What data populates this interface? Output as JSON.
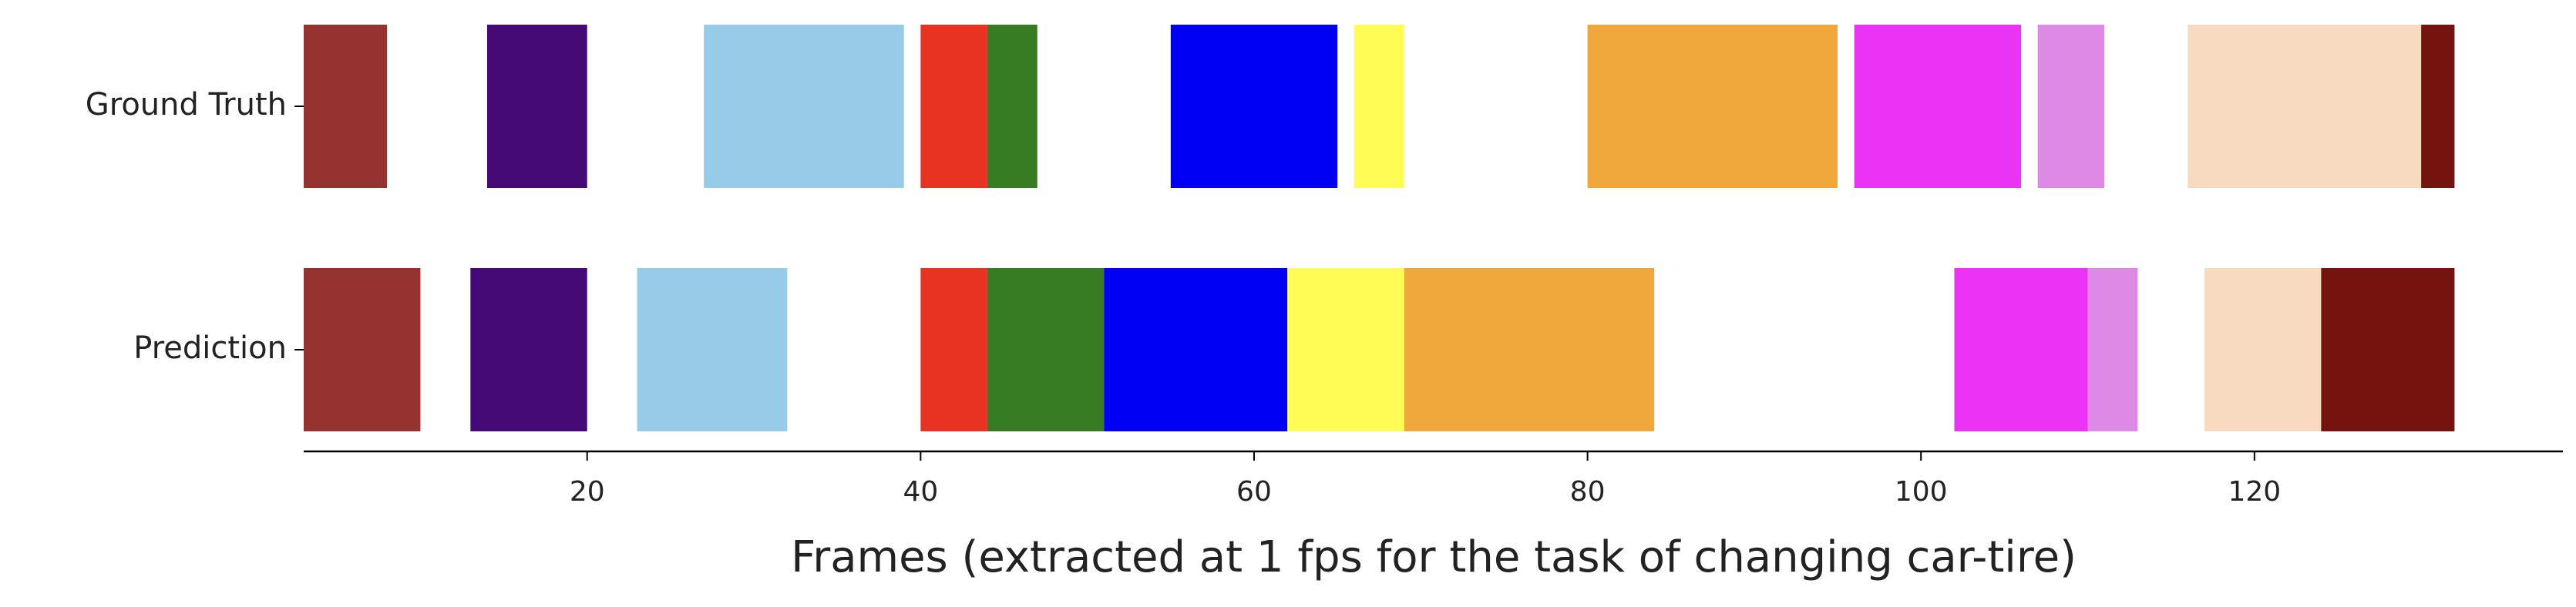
{
  "chart_data": {
    "type": "broken_barh",
    "xlabel": "Frames (extracted at 1 fps for the task of changing car-tire)",
    "xlim": [
      3,
      138.5
    ],
    "xticks": [
      20,
      40,
      60,
      80,
      100,
      120
    ],
    "series": [
      {
        "name": "Ground Truth",
        "segments": [
          {
            "start": 3,
            "end": 8,
            "color": "#953331"
          },
          {
            "start": 14,
            "end": 20,
            "color": "#460a76"
          },
          {
            "start": 27,
            "end": 39,
            "color": "#97cbe8"
          },
          {
            "start": 40,
            "end": 44,
            "color": "#e83323"
          },
          {
            "start": 44,
            "end": 47,
            "color": "#377b22"
          },
          {
            "start": 55,
            "end": 65,
            "color": "#0000f5"
          },
          {
            "start": 66,
            "end": 69,
            "color": "#fffd55"
          },
          {
            "start": 80,
            "end": 95,
            "color": "#f0a83d"
          },
          {
            "start": 96,
            "end": 106,
            "color": "#eb33f5"
          },
          {
            "start": 107,
            "end": 111,
            "color": "#de89e5"
          },
          {
            "start": 116,
            "end": 130,
            "color": "#f8dac0"
          },
          {
            "start": 130,
            "end": 132,
            "color": "#75140f"
          }
        ]
      },
      {
        "name": "Prediction",
        "segments": [
          {
            "start": 3,
            "end": 10,
            "color": "#953331"
          },
          {
            "start": 13,
            "end": 20,
            "color": "#460a76"
          },
          {
            "start": 23,
            "end": 32,
            "color": "#97cbe8"
          },
          {
            "start": 40,
            "end": 44,
            "color": "#e83323"
          },
          {
            "start": 44,
            "end": 51,
            "color": "#377b22"
          },
          {
            "start": 51,
            "end": 62,
            "color": "#0000f5"
          },
          {
            "start": 62,
            "end": 69,
            "color": "#fffd55"
          },
          {
            "start": 69,
            "end": 84,
            "color": "#f0a83d"
          },
          {
            "start": 102,
            "end": 110,
            "color": "#eb33f5"
          },
          {
            "start": 110,
            "end": 113,
            "color": "#de89e5"
          },
          {
            "start": 117,
            "end": 124,
            "color": "#f8dac0"
          },
          {
            "start": 124,
            "end": 132,
            "color": "#75140f"
          }
        ]
      }
    ]
  }
}
